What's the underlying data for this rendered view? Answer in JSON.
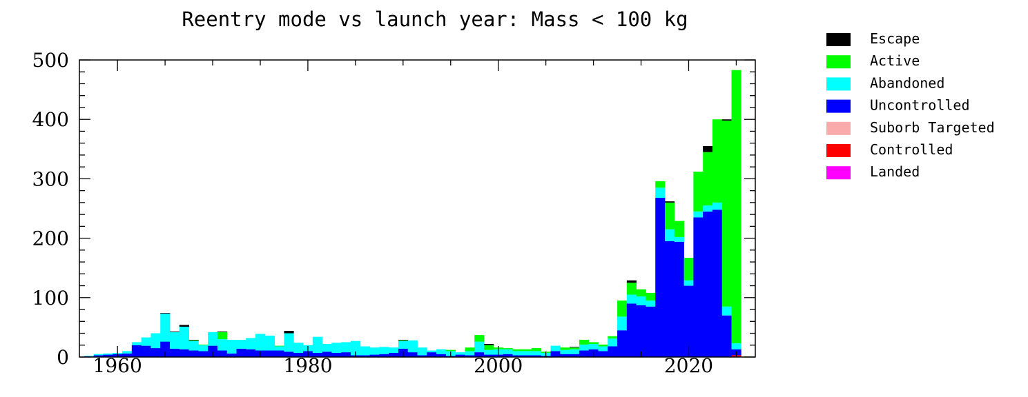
{
  "chart_data": {
    "type": "bar",
    "stacked": true,
    "title": "Reentry mode vs launch year: Mass < 100 kg",
    "xlabel": "",
    "ylabel": "",
    "xlim": [
      1956,
      2027
    ],
    "ylim": [
      0,
      500
    ],
    "x_ticks": [
      1960,
      1980,
      2000,
      2020
    ],
    "y_ticks": [
      0,
      100,
      200,
      300,
      400,
      500
    ],
    "x_tick_labels": [
      "1960",
      "1980",
      "2000",
      "2020"
    ],
    "y_tick_labels": [
      "0",
      "100",
      "200",
      "300",
      "400",
      "500"
    ],
    "legend_position": "right",
    "years": [
      1957,
      1958,
      1959,
      1960,
      1961,
      1962,
      1963,
      1964,
      1965,
      1966,
      1967,
      1968,
      1969,
      1970,
      1971,
      1972,
      1973,
      1974,
      1975,
      1976,
      1977,
      1978,
      1979,
      1980,
      1981,
      1982,
      1983,
      1984,
      1985,
      1986,
      1987,
      1988,
      1989,
      1990,
      1991,
      1992,
      1993,
      1994,
      1995,
      1996,
      1997,
      1998,
      1999,
      2000,
      2001,
      2002,
      2003,
      2004,
      2005,
      2006,
      2007,
      2008,
      2009,
      2010,
      2011,
      2012,
      2013,
      2014,
      2015,
      2016,
      2017,
      2018,
      2019,
      2020,
      2021,
      2022,
      2023,
      2024,
      2025
    ],
    "series": [
      {
        "name": "Landed",
        "color": "#ff00ff",
        "values": [
          0,
          0,
          0,
          0,
          0,
          0,
          0,
          0,
          0,
          0,
          0,
          0,
          0,
          0,
          0,
          0,
          0,
          0,
          0,
          0,
          0,
          0,
          0,
          0,
          0,
          0,
          0,
          0,
          0,
          0,
          0,
          0,
          0,
          0,
          0,
          0,
          0,
          0,
          0,
          0,
          0,
          0,
          0,
          0,
          0,
          0,
          0,
          0,
          0,
          0,
          0,
          0,
          0,
          0,
          0,
          0,
          0,
          0,
          0,
          0,
          0,
          0,
          0,
          0,
          0,
          0,
          0,
          0,
          0
        ]
      },
      {
        "name": "Controlled",
        "color": "#ff0000",
        "values": [
          0,
          0,
          0,
          0,
          0,
          0,
          0,
          0,
          0,
          0,
          0,
          0,
          0,
          0,
          0,
          0,
          0,
          0,
          0,
          0,
          0,
          0,
          0,
          0,
          0,
          0,
          0,
          0,
          0,
          0,
          0,
          0,
          0,
          0,
          0,
          0,
          0,
          0,
          0,
          0,
          0,
          0,
          0,
          0,
          0,
          0,
          0,
          0,
          0,
          0,
          0,
          0,
          0,
          0,
          0,
          0,
          0,
          0,
          0,
          0,
          0,
          0,
          0,
          0,
          0,
          0,
          0,
          0,
          3
        ]
      },
      {
        "name": "Suborb Targeted",
        "color": "#faaaaa",
        "values": [
          0,
          0,
          0,
          0,
          0,
          0,
          0,
          0,
          0,
          0,
          0,
          0,
          0,
          0,
          0,
          0,
          0,
          0,
          0,
          0,
          0,
          0,
          0,
          0,
          0,
          0,
          0,
          0,
          0,
          0,
          0,
          0,
          0,
          0,
          0,
          0,
          0,
          0,
          0,
          0,
          0,
          0,
          0,
          0,
          0,
          0,
          0,
          0,
          0,
          0,
          0,
          0,
          0,
          0,
          0,
          0,
          0,
          0,
          0,
          0,
          0,
          0,
          0,
          0,
          0,
          0,
          0,
          0,
          0
        ]
      },
      {
        "name": "Uncontrolled",
        "color": "#0000ff",
        "values": [
          1,
          3,
          4,
          5,
          6,
          20,
          19,
          15,
          26,
          14,
          13,
          11,
          10,
          19,
          11,
          6,
          14,
          13,
          11,
          11,
          11,
          9,
          7,
          10,
          7,
          9,
          7,
          8,
          3,
          3,
          4,
          5,
          7,
          14,
          8,
          3,
          8,
          5,
          2,
          4,
          3,
          8,
          4,
          4,
          5,
          3,
          3,
          3,
          2,
          10,
          5,
          5,
          11,
          13,
          10,
          18,
          45,
          90,
          87,
          85,
          268,
          195,
          194,
          120,
          235,
          245,
          248,
          70,
          10
        ]
      },
      {
        "name": "Abandoned",
        "color": "#00ffff",
        "values": [
          1,
          2,
          2,
          2,
          4,
          5,
          14,
          25,
          47,
          28,
          38,
          16,
          10,
          23,
          19,
          23,
          15,
          19,
          28,
          25,
          7,
          31,
          17,
          10,
          27,
          13,
          17,
          17,
          24,
          15,
          12,
          12,
          9,
          13,
          20,
          13,
          3,
          8,
          8,
          4,
          7,
          18,
          8,
          9,
          8,
          7,
          7,
          7,
          5,
          9,
          7,
          8,
          10,
          9,
          8,
          13,
          23,
          15,
          15,
          10,
          17,
          20,
          8,
          9,
          10,
          10,
          12,
          15,
          10
        ]
      },
      {
        "name": "Active",
        "color": "#00ff00",
        "values": [
          0,
          0,
          0,
          0,
          0,
          0,
          0,
          0,
          0,
          0,
          0,
          1,
          1,
          0,
          12,
          0,
          0,
          0,
          0,
          0,
          1,
          0,
          0,
          0,
          0,
          0,
          0,
          0,
          0,
          0,
          0,
          0,
          0,
          1,
          0,
          0,
          0,
          0,
          2,
          0,
          6,
          11,
          8,
          3,
          2,
          3,
          3,
          5,
          2,
          0,
          4,
          3,
          8,
          3,
          3,
          4,
          27,
          20,
          12,
          13,
          11,
          45,
          27,
          38,
          67,
          90,
          140,
          313,
          460
        ]
      },
      {
        "name": "Escape",
        "color": "#000000",
        "values": [
          0,
          0,
          0,
          0,
          0,
          0,
          0,
          0,
          1,
          1,
          3,
          1,
          0,
          0,
          1,
          0,
          0,
          0,
          0,
          0,
          0,
          4,
          0,
          0,
          0,
          0,
          0,
          0,
          0,
          0,
          0,
          0,
          0,
          1,
          0,
          0,
          0,
          0,
          0,
          0,
          0,
          0,
          2,
          0,
          0,
          0,
          0,
          0,
          0,
          0,
          0,
          1,
          0,
          0,
          0,
          0,
          0,
          4,
          0,
          0,
          0,
          2,
          0,
          0,
          0,
          10,
          0,
          2,
          0
        ]
      }
    ]
  },
  "legend": {
    "items": [
      {
        "label": "Escape",
        "color": "#000000"
      },
      {
        "label": "Active",
        "color": "#00ff00"
      },
      {
        "label": "Abandoned",
        "color": "#00ffff"
      },
      {
        "label": "Uncontrolled",
        "color": "#0000ff"
      },
      {
        "label": "Suborb Targeted",
        "color": "#faaaaa"
      },
      {
        "label": "Controlled",
        "color": "#ff0000"
      },
      {
        "label": "Landed",
        "color": "#ff00ff"
      }
    ]
  }
}
